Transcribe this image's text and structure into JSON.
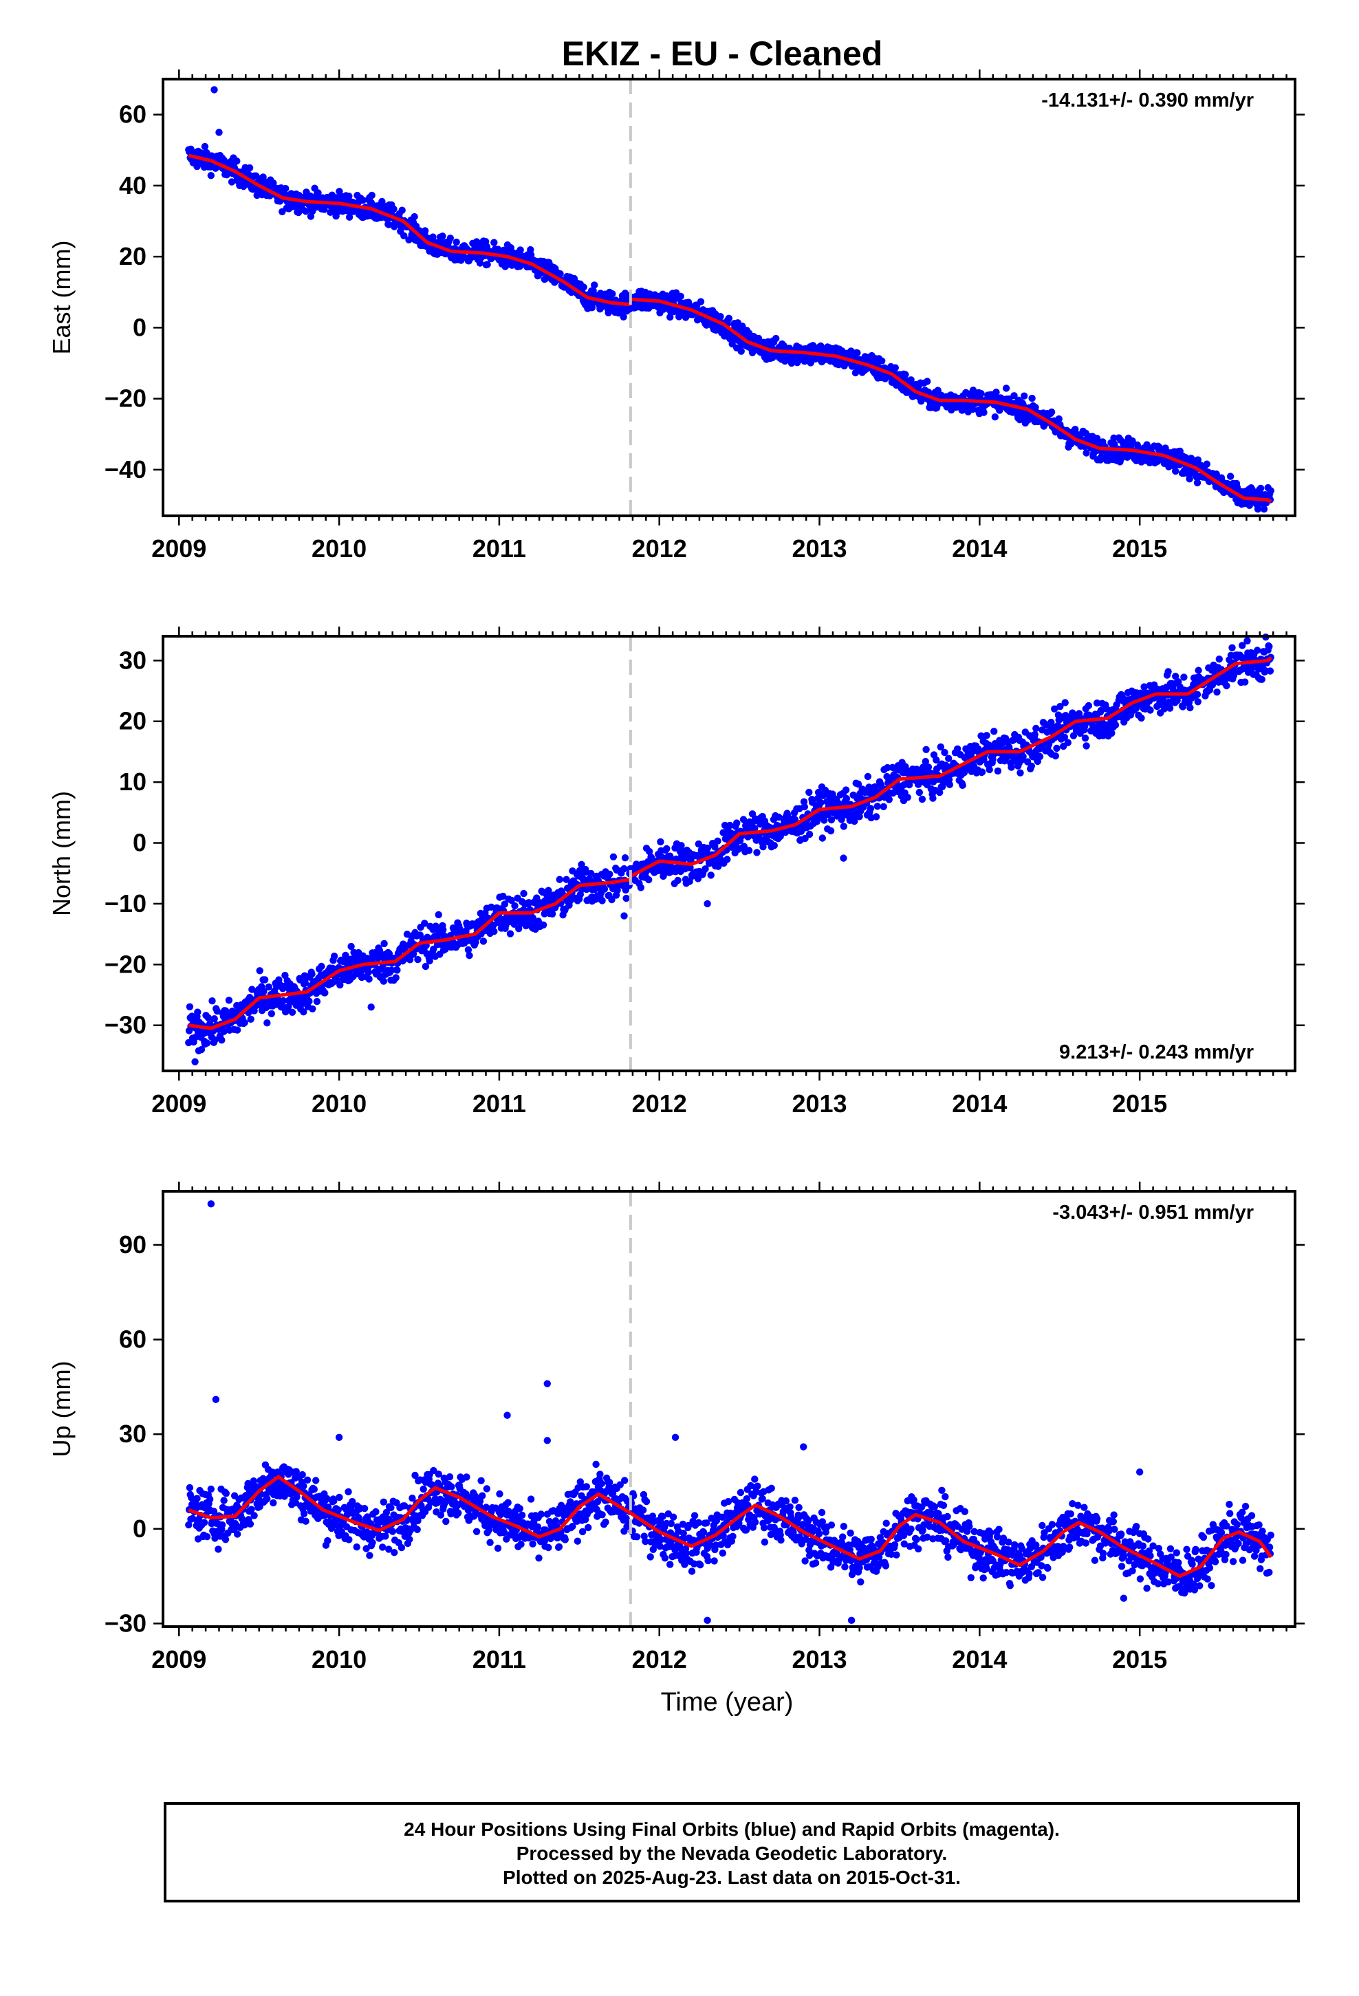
{
  "title": "EKIZ  - EU - Cleaned",
  "xlabel": "Time (year)",
  "footer": {
    "line1": "24 Hour Positions Using Final Orbits (blue) and Rapid Orbits (magenta).",
    "line2": "Processed by the Nevada Geodetic Laboratory.",
    "line3": "Plotted on 2025-Aug-23. Last data on 2015-Oct-31."
  },
  "colors": {
    "data": "#0000ff",
    "model": "#ff0000",
    "event": "#c8c8c8",
    "axes": "#000000"
  },
  "chart_data": [
    {
      "type": "scatter",
      "component": "East",
      "ylabel": "East (mm)",
      "rate_label": "-14.131+/- 0.390 mm/yr",
      "rate_position": "top-right",
      "xlim": [
        2008.9,
        2015.97
      ],
      "ylim": [
        -53,
        70
      ],
      "xticks": [
        2009,
        2010,
        2011,
        2012,
        2013,
        2014,
        2015
      ],
      "yticks": [
        -40,
        -20,
        0,
        20,
        40,
        60
      ],
      "event_line_x": 2011.82,
      "model": {
        "segments": [
          [
            [
              2009.06,
              48.5
            ],
            [
              2009.2,
              47
            ],
            [
              2009.35,
              44
            ],
            [
              2009.5,
              40
            ],
            [
              2009.65,
              36.5
            ],
            [
              2009.8,
              35.5
            ],
            [
              2010.0,
              35
            ],
            [
              2010.2,
              33.5
            ],
            [
              2010.4,
              30
            ],
            [
              2010.55,
              24
            ],
            [
              2010.7,
              21.5
            ],
            [
              2010.9,
              21
            ],
            [
              2011.05,
              20
            ],
            [
              2011.2,
              18
            ],
            [
              2011.4,
              13
            ],
            [
              2011.55,
              8.5
            ],
            [
              2011.7,
              7
            ],
            [
              2011.82,
              6.5
            ]
          ],
          [
            [
              2011.82,
              8
            ],
            [
              2012.0,
              7.5
            ],
            [
              2012.2,
              5
            ],
            [
              2012.4,
              1
            ],
            [
              2012.55,
              -4
            ],
            [
              2012.7,
              -6.5
            ],
            [
              2012.9,
              -7
            ],
            [
              2013.1,
              -8
            ],
            [
              2013.3,
              -10.5
            ],
            [
              2013.45,
              -13
            ],
            [
              2013.6,
              -18
            ],
            [
              2013.75,
              -20.5
            ],
            [
              2013.9,
              -20.5
            ],
            [
              2014.1,
              -21
            ],
            [
              2014.3,
              -23
            ],
            [
              2014.45,
              -27
            ],
            [
              2014.6,
              -31.5
            ],
            [
              2014.75,
              -34
            ],
            [
              2014.95,
              -34.5
            ],
            [
              2015.15,
              -36
            ],
            [
              2015.35,
              -39.5
            ],
            [
              2015.5,
              -44
            ],
            [
              2015.65,
              -48
            ],
            [
              2015.8,
              -48.5
            ],
            [
              2015.82,
              -49
            ]
          ]
        ]
      },
      "outliers": [
        [
          2009.22,
          67
        ],
        [
          2009.25,
          55
        ]
      ]
    },
    {
      "type": "scatter",
      "component": "North",
      "ylabel": "North (mm)",
      "rate_label": "9.213+/- 0.243 mm/yr",
      "rate_position": "bottom-right",
      "xlim": [
        2008.9,
        2015.97
      ],
      "ylim": [
        -37.5,
        34
      ],
      "xticks": [
        2009,
        2010,
        2011,
        2012,
        2013,
        2014,
        2015
      ],
      "yticks": [
        -30,
        -20,
        -10,
        0,
        10,
        20,
        30
      ],
      "event_line_x": 2011.82,
      "model": {
        "segments": [
          [
            [
              2009.06,
              -30
            ],
            [
              2009.2,
              -30.5
            ],
            [
              2009.35,
              -29
            ],
            [
              2009.5,
              -25.5
            ],
            [
              2009.65,
              -25
            ],
            [
              2009.8,
              -24.5
            ],
            [
              2010.0,
              -21
            ],
            [
              2010.15,
              -20
            ],
            [
              2010.35,
              -19.5
            ],
            [
              2010.5,
              -16.5
            ],
            [
              2010.65,
              -16
            ],
            [
              2010.85,
              -15
            ],
            [
              2011.0,
              -11.5
            ],
            [
              2011.2,
              -11.5
            ],
            [
              2011.35,
              -10
            ],
            [
              2011.5,
              -7
            ],
            [
              2011.7,
              -6.5
            ],
            [
              2011.82,
              -6
            ]
          ],
          [
            [
              2011.82,
              -5.5
            ],
            [
              2012.0,
              -3
            ],
            [
              2012.2,
              -3.5
            ],
            [
              2012.35,
              -2
            ],
            [
              2012.5,
              1.5
            ],
            [
              2012.7,
              2
            ],
            [
              2012.85,
              3
            ],
            [
              2013.0,
              5.5
            ],
            [
              2013.2,
              6
            ],
            [
              2013.35,
              7.5
            ],
            [
              2013.5,
              10.5
            ],
            [
              2013.75,
              11
            ],
            [
              2013.9,
              13
            ],
            [
              2014.05,
              15
            ],
            [
              2014.25,
              15
            ],
            [
              2014.45,
              17.5
            ],
            [
              2014.6,
              20
            ],
            [
              2014.8,
              20.5
            ],
            [
              2014.95,
              23
            ],
            [
              2015.1,
              24.5
            ],
            [
              2015.3,
              24.5
            ],
            [
              2015.45,
              27
            ],
            [
              2015.6,
              29.5
            ],
            [
              2015.8,
              30
            ],
            [
              2015.82,
              30.5
            ]
          ]
        ]
      },
      "outliers": [
        [
          2009.1,
          -36
        ],
        [
          2009.14,
          -34
        ],
        [
          2010.2,
          -27
        ],
        [
          2011.78,
          -12
        ],
        [
          2012.3,
          -10
        ],
        [
          2013.15,
          -2.5
        ],
        [
          2014.6,
          19
        ]
      ]
    },
    {
      "type": "scatter",
      "component": "Up",
      "ylabel": "Up (mm)",
      "rate_label": "-3.043+/- 0.951 mm/yr",
      "rate_position": "top-right",
      "xlim": [
        2008.9,
        2015.97
      ],
      "ylim": [
        -31,
        107
      ],
      "xticks": [
        2009,
        2010,
        2011,
        2012,
        2013,
        2014,
        2015
      ],
      "yticks": [
        -30,
        0,
        30,
        60,
        90
      ],
      "event_line_x": 2011.82,
      "model": {
        "segments": [
          [
            [
              2009.06,
              6
            ],
            [
              2009.2,
              3.5
            ],
            [
              2009.35,
              4
            ],
            [
              2009.5,
              12
            ],
            [
              2009.62,
              16.5
            ],
            [
              2009.75,
              12
            ],
            [
              2009.9,
              6
            ],
            [
              2010.1,
              2
            ],
            [
              2010.25,
              -0.5
            ],
            [
              2010.4,
              3
            ],
            [
              2010.5,
              9
            ],
            [
              2010.6,
              13
            ],
            [
              2010.75,
              10
            ],
            [
              2010.95,
              4
            ],
            [
              2011.1,
              1
            ],
            [
              2011.25,
              -2.5
            ],
            [
              2011.38,
              0
            ],
            [
              2011.5,
              7
            ],
            [
              2011.62,
              11
            ],
            [
              2011.82,
              5
            ]
          ],
          [
            [
              2011.82,
              5
            ],
            [
              2012.0,
              -1
            ],
            [
              2012.2,
              -5.5
            ],
            [
              2012.35,
              -2
            ],
            [
              2012.5,
              4
            ],
            [
              2012.6,
              7.5
            ],
            [
              2012.75,
              4
            ],
            [
              2012.9,
              -1
            ],
            [
              2013.1,
              -6
            ],
            [
              2013.25,
              -9.5
            ],
            [
              2013.38,
              -7
            ],
            [
              2013.5,
              1
            ],
            [
              2013.6,
              4.5
            ],
            [
              2013.75,
              2
            ],
            [
              2013.9,
              -4
            ],
            [
              2014.1,
              -8
            ],
            [
              2014.25,
              -11.5
            ],
            [
              2014.4,
              -7
            ],
            [
              2014.52,
              -1
            ],
            [
              2014.62,
              2
            ],
            [
              2014.75,
              -1
            ],
            [
              2014.9,
              -6
            ],
            [
              2015.1,
              -11
            ],
            [
              2015.25,
              -15
            ],
            [
              2015.38,
              -12
            ],
            [
              2015.52,
              -3
            ],
            [
              2015.62,
              -1
            ],
            [
              2015.75,
              -4
            ],
            [
              2015.82,
              -9
            ]
          ]
        ]
      },
      "outliers": [
        [
          2009.2,
          103
        ],
        [
          2009.23,
          41
        ],
        [
          2010.0,
          29
        ],
        [
          2011.05,
          36
        ],
        [
          2011.3,
          46
        ],
        [
          2011.3,
          28
        ],
        [
          2012.1,
          29
        ],
        [
          2012.3,
          -29
        ],
        [
          2012.9,
          26
        ],
        [
          2013.2,
          -29
        ],
        [
          2015.0,
          18
        ],
        [
          2014.9,
          -22
        ]
      ]
    }
  ]
}
